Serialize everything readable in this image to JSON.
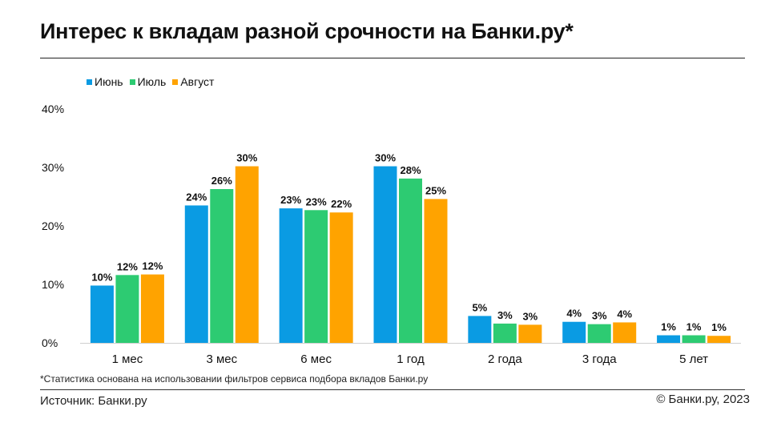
{
  "header": {
    "title": "Интерес к вкладам разной срочности на Банки.ру*"
  },
  "footer": {
    "note": "*Статистика основана на использовании фильтров сервиса подбора вкладов Банки.ру",
    "source": "Источник: Банки.ру",
    "copyright": "© Банки.ру, 2023"
  },
  "colors": {
    "june": "#0A9BE3",
    "july": "#2DCB72",
    "august": "#FFA300"
  },
  "chart_data": {
    "type": "bar",
    "title": "Интерес к вкладам разной срочности на Банки.ру*",
    "xlabel": "",
    "ylabel": "",
    "ylim": [
      0,
      40
    ],
    "yticks": [
      "0%",
      "10%",
      "20%",
      "30%",
      "40%"
    ],
    "ytick_values": [
      0,
      10,
      20,
      30,
      40
    ],
    "grid": false,
    "legend_position": "top-left",
    "categories": [
      "1 мес",
      "3 мес",
      "6 мес",
      "1 год",
      "2 года",
      "3 года",
      "5 лет"
    ],
    "series": [
      {
        "name": "Июнь",
        "color": "#0A9BE3",
        "values": [
          9.8,
          23.5,
          23.0,
          30.2,
          4.6,
          3.6,
          1.3
        ],
        "labels": [
          "10%",
          "24%",
          "23%",
          "30%",
          "5%",
          "4%",
          "1%"
        ]
      },
      {
        "name": "Июль",
        "color": "#2DCB72",
        "values": [
          11.6,
          26.3,
          22.7,
          28.1,
          3.3,
          3.2,
          1.3
        ],
        "labels": [
          "12%",
          "26%",
          "23%",
          "28%",
          "3%",
          "3%",
          "1%"
        ]
      },
      {
        "name": "Август",
        "color": "#FFA300",
        "values": [
          11.7,
          30.2,
          22.3,
          24.6,
          3.1,
          3.5,
          1.2
        ],
        "labels": [
          "12%",
          "30%",
          "22%",
          "25%",
          "3%",
          "4%",
          "1%"
        ]
      }
    ]
  }
}
